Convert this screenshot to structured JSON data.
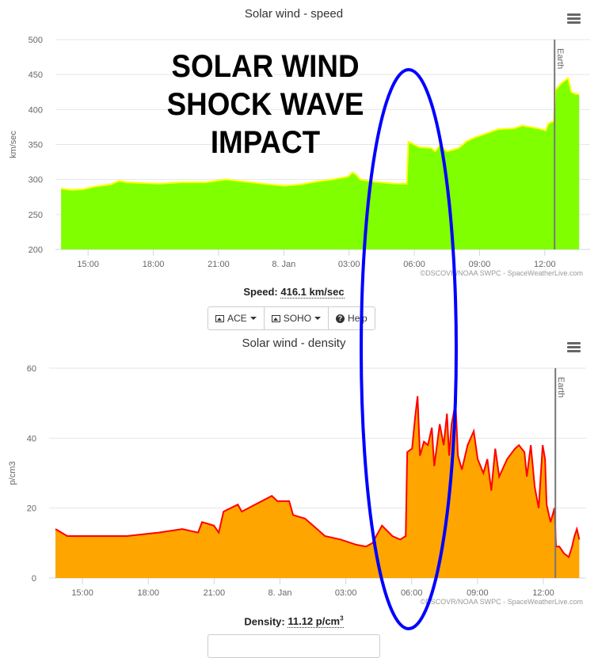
{
  "annotation": {
    "lines": [
      "SOLAR WIND",
      "SHOCK WAVE",
      "IMPACT"
    ],
    "ellipse_color": "#0000ff"
  },
  "speed_panel": {
    "readout_label": "Speed:",
    "readout_value": "416.1 km/sec",
    "buttons": [
      {
        "label": "ACE",
        "icon": "image-icon"
      },
      {
        "label": "SOHO",
        "icon": "image-icon"
      },
      {
        "label": "Help",
        "icon": "question-icon"
      }
    ]
  },
  "density_panel": {
    "readout_label": "Density:",
    "readout_value": "11.12 p/cm",
    "readout_sup": "3"
  },
  "chart_data": [
    {
      "type": "area",
      "title": "Solar wind - speed",
      "ylabel": "km/sec",
      "xlabel": "",
      "x_units": "hours since 7 Jan 00:00",
      "xlim": [
        13.5,
        37.9
      ],
      "ylim": [
        200,
        500
      ],
      "yticks": [
        200,
        250,
        300,
        350,
        400,
        450,
        500
      ],
      "xticks": [
        {
          "v": 15,
          "label": "15:00"
        },
        {
          "v": 18,
          "label": "18:00"
        },
        {
          "v": 21,
          "label": "21:00"
        },
        {
          "v": 24,
          "label": "8. Jan"
        },
        {
          "v": 27,
          "label": "03:00"
        },
        {
          "v": 30,
          "label": "06:00"
        },
        {
          "v": 33,
          "label": "09:00"
        },
        {
          "v": 36,
          "label": "12:00"
        }
      ],
      "grid": true,
      "fill_color": "#7fff00",
      "line_color": "#ffff00",
      "marker_line": {
        "x": 36.45,
        "label": "Earth"
      },
      "credit": "©DSCOVR/NOAA SWPC - SpaceWeatherLive.com",
      "x": [
        13.76,
        14.24,
        14.78,
        15.33,
        16.05,
        16.42,
        16.78,
        17.51,
        18.24,
        19.33,
        20.42,
        21.33,
        21.87,
        23.33,
        24.05,
        24.78,
        25.51,
        26.24,
        26.96,
        27.15,
        27.33,
        27.51,
        28.05,
        29.15,
        29.65,
        29.73,
        30.24,
        30.78,
        30.96,
        31.15,
        31.51,
        32.05,
        32.42,
        32.78,
        33.51,
        33.87,
        34.6,
        34.96,
        35.69,
        36.05,
        36.16,
        36.42,
        36.49,
        36.78,
        37.07,
        37.22,
        37.44,
        37.58
      ],
      "values": [
        287,
        285,
        286,
        290,
        293,
        298,
        296,
        295,
        294,
        296,
        296,
        300,
        298,
        293,
        291,
        293,
        297,
        300,
        304,
        310,
        307,
        300,
        297,
        294,
        294,
        354,
        346,
        345,
        340,
        348,
        340,
        345,
        355,
        360,
        368,
        372,
        373,
        377,
        373,
        370,
        380,
        383,
        428,
        438,
        445,
        425,
        422,
        422
      ]
    },
    {
      "type": "area",
      "title": "Solar wind - density",
      "ylabel": "p/cm3",
      "xlabel": "",
      "x_units": "hours since 7 Jan 00:00",
      "xlim": [
        13.77,
        37.77
      ],
      "ylim": [
        0,
        60
      ],
      "yticks": [
        0,
        20,
        40,
        60
      ],
      "xticks": [
        {
          "v": 15,
          "label": "15:00"
        },
        {
          "v": 18,
          "label": "18:00"
        },
        {
          "v": 21,
          "label": "21:00"
        },
        {
          "v": 24,
          "label": "8. Jan"
        },
        {
          "v": 27,
          "label": "03:00"
        },
        {
          "v": 30,
          "label": "06:00"
        },
        {
          "v": 33,
          "label": "09:00"
        },
        {
          "v": 36,
          "label": "12:00"
        }
      ],
      "grid": true,
      "fill_color": "#ffa500",
      "line_color": "#ff0000",
      "marker_line": {
        "x": 36.55,
        "label": "Earth"
      },
      "credit": "©DSCOVR/NOAA SWPC - SpaceWeatherLive.com",
      "x": [
        13.77,
        14.31,
        14.86,
        15.94,
        17.02,
        18.47,
        19.55,
        20.27,
        20.45,
        20.99,
        21.21,
        21.43,
        22.08,
        22.26,
        23.63,
        23.88,
        24.42,
        24.6,
        25.14,
        25.51,
        26.05,
        26.77,
        27.49,
        27.92,
        28.21,
        28.65,
        29.12,
        29.48,
        29.73,
        29.8,
        30.02,
        30.16,
        30.27,
        30.38,
        30.56,
        30.74,
        30.92,
        31.03,
        31.28,
        31.46,
        31.61,
        31.71,
        31.82,
        32.0,
        32.11,
        32.29,
        32.55,
        32.83,
        33.01,
        33.27,
        33.45,
        33.63,
        33.81,
        33.99,
        34.35,
        34.71,
        34.89,
        35.14,
        35.25,
        35.43,
        35.61,
        35.79,
        35.97,
        36.08,
        36.15,
        36.33,
        36.51,
        36.58,
        36.73,
        36.95,
        37.16,
        37.31,
        37.42,
        37.53,
        37.64
      ],
      "values": [
        14,
        12,
        12,
        12,
        12,
        13,
        14,
        13,
        16,
        15,
        13,
        19,
        21,
        19,
        23.5,
        22,
        22,
        18,
        17,
        15,
        12,
        11,
        9.5,
        9,
        10,
        15,
        12,
        11,
        12,
        36,
        37,
        46,
        52,
        35,
        39,
        38,
        43,
        32,
        44,
        38,
        47,
        35,
        44,
        50,
        35,
        31,
        38,
        42,
        34,
        30,
        34,
        25,
        37,
        29,
        34,
        37,
        38,
        36,
        29,
        38,
        26,
        20,
        38,
        34,
        21,
        16,
        20,
        9,
        9,
        7,
        6,
        9,
        12,
        14,
        11
      ]
    }
  ]
}
